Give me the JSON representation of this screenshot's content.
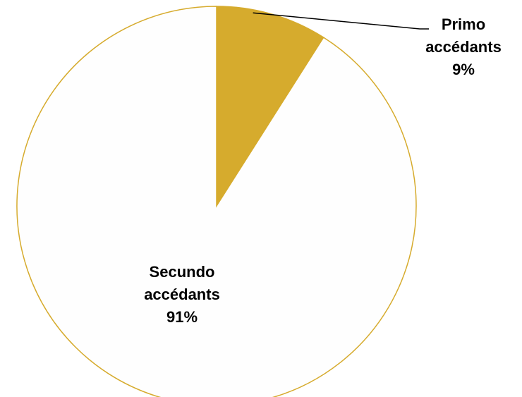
{
  "chart_data": {
    "type": "pie",
    "start": "top",
    "direction": "clockwise",
    "slices": [
      {
        "name": "Primo accédants",
        "value": 9,
        "label_lines": [
          "Primo",
          "accédants",
          "9%"
        ],
        "color": "#D6AB2D"
      },
      {
        "name": "Secundo accédants",
        "value": 91,
        "label_lines": [
          "Secundo",
          "accédants",
          "91%"
        ],
        "color": "#FEFEFE"
      }
    ],
    "outline_color": "#D6AB2D",
    "leader_color": "#000000"
  }
}
